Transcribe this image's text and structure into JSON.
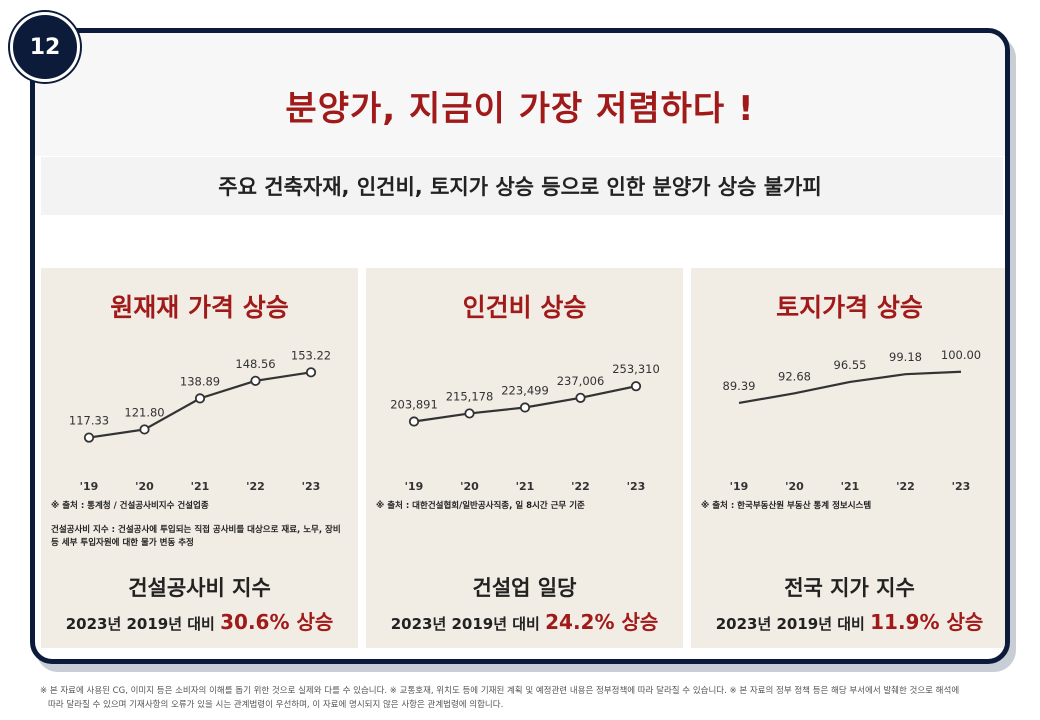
{
  "page": {
    "badge": "12",
    "title": "분양가, 지금이 가장 저렴하다 !",
    "subtitle": "주요 건축자재, 인건비, 토지가 상승 등으로 인한 분양가 상승 불가피",
    "disclaimer": [
      "※ 본 자료에 사용된 CG, 이미지 등은 소비자의 이해를 돕기 위한 것으로 실제와 다를 수 있습니다. ※ 교통호재, 위치도 등에 기재된 계획 및 예정관련 내용은 정부정책에 따라 달라질 수 있습니다. ※ 본 자료의 정부 정책 등은 해당 부서에서 발췌한 것으로 해석에",
      "따라 달라질 수 있으며 기재사항의 오류가 있을 시는 관계법령이 우선하며, 이 자료에 명시되지 않은 사항은 관계법령에 의합니다."
    ]
  },
  "colors": {
    "title_red": "#a11a1a",
    "navy": "#0d1b3a",
    "panel_bg": "#f1ece4"
  },
  "panels": [
    {
      "title": "원재재 가격 상승",
      "source": "※ 출처 : 통계청 / 건설공사비지수 건설업종",
      "note": "건설공사비 지수 : 건설공사에 투입되는 직접 공사비를 대상으로 재료, 노무, 장비 등 세부 투입자원에 대한 물가 변동 추정",
      "metric": "건설공사비 지수",
      "change_prefix": "2023년 2019년 대비",
      "change_value": "30.6% 상승"
    },
    {
      "title": "인건비 상승",
      "source": "※ 출처 : 대한건설협회/일반공사직종, 일 8시간 근무 기준",
      "note": "",
      "metric": "건설업 일당",
      "change_prefix": "2023년 2019년 대비",
      "change_value": "24.2% 상승"
    },
    {
      "title": "토지가격 상승",
      "source": "※ 출처 : 한국부동산원 부동산 통계 정보시스템",
      "note": "",
      "metric": "전국 지가 지수",
      "change_prefix": "2023년 2019년 대비",
      "change_value": "11.9% 상승"
    }
  ],
  "chart_data": [
    {
      "type": "line",
      "title": "원재재 가격 상승",
      "categories": [
        "'19",
        "'20",
        "'21",
        "'22",
        "'23"
      ],
      "values": [
        117.33,
        121.8,
        138.89,
        148.56,
        153.22
      ],
      "labels": [
        "117.33",
        "121.80",
        "138.89",
        "148.56",
        "153.22"
      ],
      "ylim": [
        105,
        160
      ],
      "markers": true
    },
    {
      "type": "line",
      "title": "인건비 상승",
      "categories": [
        "'19",
        "'20",
        "'21",
        "'22",
        "'23"
      ],
      "values": [
        203891,
        215178,
        223499,
        237006,
        253310
      ],
      "labels": [
        "203,891",
        "215,178",
        "223,499",
        "237,006",
        "253,310"
      ],
      "ylim": [
        150000,
        290000
      ],
      "markers": true
    },
    {
      "type": "line",
      "title": "토지가격 상승",
      "categories": [
        "'19",
        "'20",
        "'21",
        "'22",
        "'23"
      ],
      "values": [
        89.39,
        92.68,
        96.55,
        99.18,
        100.0
      ],
      "labels": [
        "89.39",
        "92.68",
        "96.55",
        "99.18",
        "100.00"
      ],
      "ylim": [
        70,
        104
      ],
      "markers": false
    }
  ]
}
